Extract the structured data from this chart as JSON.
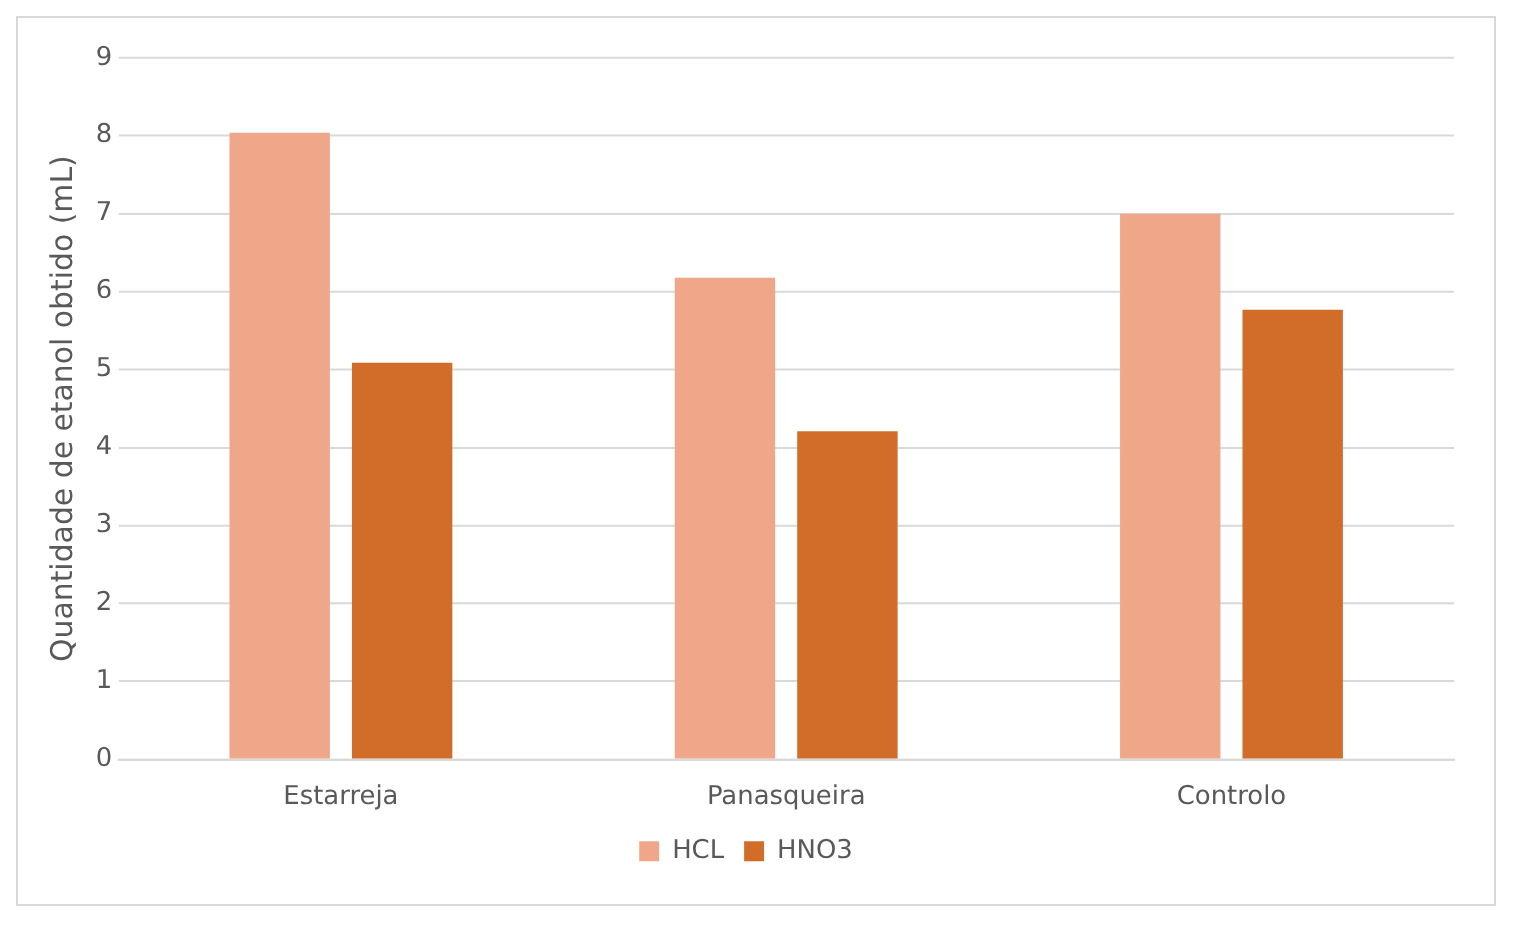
{
  "chart_data": {
    "type": "bar",
    "ylabel": "Quantidade de etanol obtido (mL)",
    "categories": [
      "Estarreja",
      "Panasqueira",
      "Controlo"
    ],
    "series": [
      {
        "name": "HCL",
        "color": "#f0a789",
        "values": [
          8.04,
          6.18,
          7.0
        ]
      },
      {
        "name": "HNO3",
        "color": "#d16d28",
        "values": [
          5.09,
          4.21,
          5.77
        ]
      }
    ],
    "ylim": [
      0,
      9
    ],
    "yticks": [
      0,
      1,
      2,
      3,
      4,
      5,
      6,
      7,
      8,
      9
    ],
    "grid": "y",
    "legend": "bottom"
  }
}
